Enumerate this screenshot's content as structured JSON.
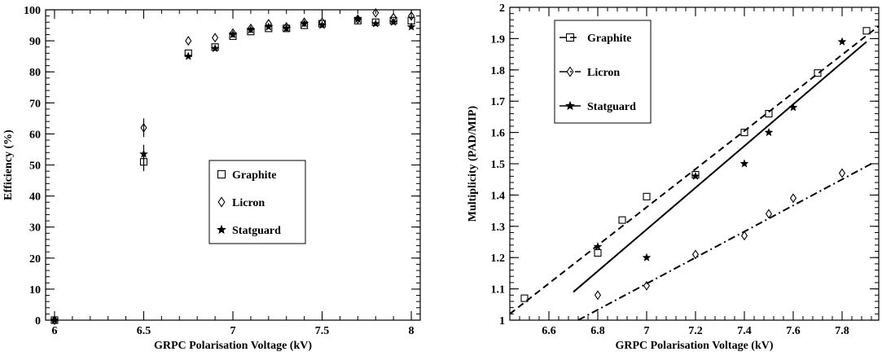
{
  "chart_data": [
    {
      "type": "scatter",
      "xlabel": "GRPC Polarisation Voltage (kV)",
      "ylabel": "Efficiency (%)",
      "xlim": [
        5.95,
        8.05
      ],
      "ylim": [
        0,
        100
      ],
      "xticks": [
        6,
        6.5,
        7,
        7.5,
        8
      ],
      "xtick_labels": [
        "6",
        "6.5",
        "7",
        "7.5",
        "8"
      ],
      "yticks": [
        0,
        10,
        20,
        30,
        40,
        50,
        60,
        70,
        80,
        90,
        100
      ],
      "ytick_labels": [
        "0",
        "10",
        "20",
        "30",
        "40",
        "50",
        "60",
        "70",
        "80",
        "90",
        "100"
      ],
      "legend_position": "center-right",
      "series": [
        {
          "name": "Graphite",
          "marker": "square",
          "x": [
            6.0,
            6.5,
            6.75,
            6.9,
            7.0,
            7.1,
            7.2,
            7.3,
            7.4,
            7.5,
            7.7,
            7.8,
            7.9,
            8.0
          ],
          "y": [
            0,
            51,
            86,
            88,
            91.5,
            93,
            94,
            94,
            95,
            95.5,
            96.5,
            96,
            96.5,
            96.5
          ]
        },
        {
          "name": "Licron",
          "marker": "diamond",
          "x": [
            6.0,
            6.5,
            6.75,
            6.9,
            7.0,
            7.1,
            7.2,
            7.3,
            7.4,
            7.5,
            7.7,
            7.8,
            7.9,
            8.0
          ],
          "y": [
            0,
            62,
            90,
            91,
            92.5,
            94,
            95.5,
            94.5,
            96,
            96,
            97,
            99,
            97.5,
            98
          ]
        },
        {
          "name": "Statguard",
          "marker": "star",
          "x": [
            6.0,
            6.5,
            6.75,
            6.9,
            7.0,
            7.1,
            7.2,
            7.3,
            7.4,
            7.5,
            7.7,
            7.8,
            7.9,
            8.0
          ],
          "y": [
            0,
            53.5,
            85,
            87.5,
            92,
            93.5,
            94.5,
            94,
            95.5,
            95,
            97,
            95.5,
            96,
            94.5
          ]
        }
      ]
    },
    {
      "type": "scatter",
      "xlabel": "GRPC Polarisation Voltage (kV)",
      "ylabel": "Multiplicity (PAD/MIP)",
      "xlim": [
        6.44,
        7.95
      ],
      "ylim": [
        1,
        2
      ],
      "xticks": [
        6.6,
        6.8,
        7,
        7.2,
        7.4,
        7.6,
        7.8
      ],
      "xtick_labels": [
        "6.6",
        "6.8",
        "7",
        "7.2",
        "7.4",
        "7.6",
        "7.8"
      ],
      "yticks": [
        1,
        1.1,
        1.2,
        1.3,
        1.4,
        1.5,
        1.6,
        1.7,
        1.8,
        1.9,
        2
      ],
      "ytick_labels": [
        "1",
        "1.1",
        "1.2",
        "1.3",
        "1.4",
        "1.5",
        "1.6",
        "1.7",
        "1.8",
        "1.9",
        "2"
      ],
      "legend_position": "top-left",
      "series": [
        {
          "name": "Graphite",
          "marker": "square",
          "line": "dashed",
          "x": [
            6.5,
            6.8,
            6.9,
            7.0,
            7.2,
            7.4,
            7.5,
            7.7,
            7.9
          ],
          "y": [
            1.07,
            1.215,
            1.32,
            1.395,
            1.465,
            1.6,
            1.66,
            1.79,
            1.925
          ],
          "fit": {
            "x": [
              6.44,
              7.95
            ],
            "y": [
              1.02,
              1.94
            ]
          }
        },
        {
          "name": "Licron",
          "marker": "diamond",
          "line": "dashdot",
          "x": [
            6.8,
            7.0,
            7.2,
            7.4,
            7.5,
            7.6,
            7.8
          ],
          "y": [
            1.08,
            1.11,
            1.21,
            1.27,
            1.34,
            1.39,
            1.47
          ],
          "fit": {
            "x": [
              6.72,
              7.92
            ],
            "y": [
              1.0,
              1.5
            ]
          }
        },
        {
          "name": "Statguard",
          "marker": "star",
          "line": "solid",
          "x": [
            6.8,
            7.0,
            7.2,
            7.4,
            7.5,
            7.6,
            7.8
          ],
          "y": [
            1.235,
            1.2,
            1.46,
            1.5,
            1.6,
            1.68,
            1.89
          ],
          "fit": {
            "x": [
              6.7,
              7.9
            ],
            "y": [
              1.09,
              1.89
            ]
          }
        }
      ]
    }
  ]
}
